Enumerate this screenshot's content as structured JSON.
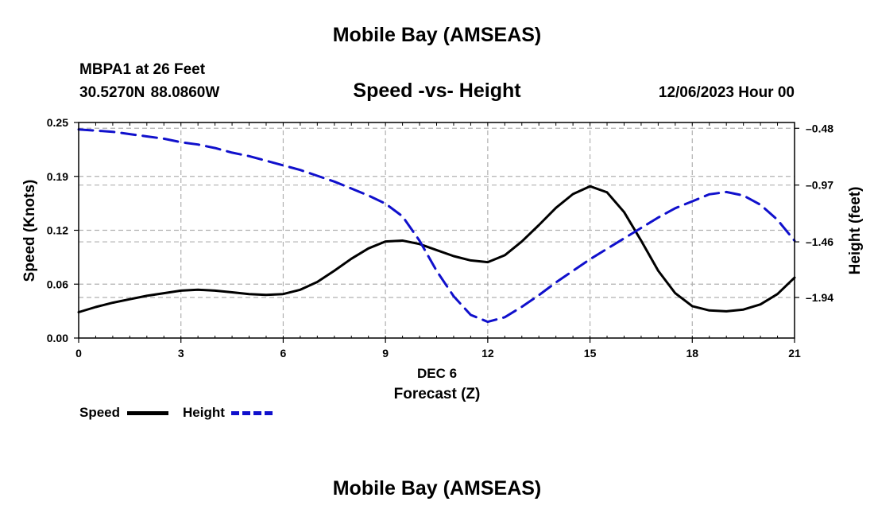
{
  "header": {
    "title": "Mobile Bay (AMSEAS)",
    "station": "MBPA1 at 26 Feet",
    "coords": "30.5270N  88.0860W",
    "subtitle": "Speed -vs- Height",
    "datetime": "12/06/2023 Hour 00"
  },
  "footer": {
    "title": "Mobile Bay (AMSEAS)"
  },
  "legend": {
    "speed_label": "Speed",
    "height_label": "Height"
  },
  "colors": {
    "speed": "#000000",
    "height": "#1010cc",
    "grid": "#b0b0b0"
  },
  "chart_data": {
    "type": "line",
    "title": "Speed -vs- Height",
    "xlabel": "Forecast (Z)",
    "xlabel_date": "DEC 6",
    "ylabel": "Speed (Knots)",
    "y2label": "Height (feet)",
    "xlim": [
      0,
      21
    ],
    "ylim": [
      0,
      0.25
    ],
    "y2lim": [
      -2.29,
      -0.43
    ],
    "x_ticks": [
      0,
      3,
      6,
      9,
      12,
      15,
      18,
      21
    ],
    "x_tick_labels": [
      "0",
      "3",
      "6",
      "9",
      "12",
      "15",
      "18",
      "21"
    ],
    "y_ticks": [
      0,
      0.0625,
      0.125,
      0.1875,
      0.25
    ],
    "y_tick_labels": [
      "0.00",
      "0.06",
      "0.12",
      "0.19",
      "0.25"
    ],
    "y2_ticks": [
      -0.48,
      -0.97,
      -1.46,
      -1.94
    ],
    "y2_tick_labels": [
      "-0.48",
      "-0.97",
      "-1.46",
      "-1.94"
    ],
    "grid": true,
    "series": [
      {
        "name": "Speed",
        "axis": "left",
        "style": "solid",
        "x": [
          0,
          0.5,
          1,
          1.5,
          2,
          2.5,
          3,
          3.5,
          4,
          4.5,
          5,
          5.5,
          6,
          6.5,
          7,
          7.5,
          8,
          8.5,
          9,
          9.5,
          10,
          10.5,
          11,
          11.5,
          12,
          12.5,
          13,
          13.5,
          14,
          14.5,
          15,
          15.5,
          16,
          16.5,
          17,
          17.5,
          18,
          18.5,
          19,
          19.5,
          20,
          20.5,
          21
        ],
        "values": [
          0.03,
          0.036,
          0.041,
          0.045,
          0.049,
          0.052,
          0.055,
          0.056,
          0.055,
          0.053,
          0.051,
          0.05,
          0.051,
          0.056,
          0.065,
          0.078,
          0.092,
          0.104,
          0.112,
          0.113,
          0.109,
          0.102,
          0.095,
          0.09,
          0.088,
          0.096,
          0.112,
          0.131,
          0.151,
          0.167,
          0.176,
          0.169,
          0.146,
          0.113,
          0.078,
          0.052,
          0.037,
          0.032,
          0.031,
          0.033,
          0.039,
          0.051,
          0.07
        ]
      },
      {
        "name": "Height",
        "axis": "right",
        "style": "dashed",
        "x": [
          0,
          0.5,
          1,
          1.5,
          2,
          2.5,
          3,
          3.5,
          4,
          4.5,
          5,
          5.5,
          6,
          6.5,
          7,
          7.5,
          8,
          8.5,
          9,
          9.5,
          10,
          10.5,
          11,
          11.5,
          12,
          12.5,
          13,
          13.5,
          14,
          14.5,
          15,
          15.5,
          16,
          16.5,
          17,
          17.5,
          18,
          18.5,
          19,
          19.5,
          20,
          20.5,
          21
        ],
        "values": [
          -0.49,
          -0.5,
          -0.51,
          -0.53,
          -0.55,
          -0.57,
          -0.6,
          -0.62,
          -0.65,
          -0.69,
          -0.72,
          -0.76,
          -0.8,
          -0.84,
          -0.89,
          -0.94,
          -1.0,
          -1.06,
          -1.13,
          -1.24,
          -1.45,
          -1.71,
          -1.93,
          -2.09,
          -2.15,
          -2.11,
          -2.02,
          -1.92,
          -1.81,
          -1.71,
          -1.61,
          -1.52,
          -1.43,
          -1.34,
          -1.25,
          -1.17,
          -1.11,
          -1.05,
          -1.03,
          -1.06,
          -1.14,
          -1.27,
          -1.45
        ]
      }
    ]
  }
}
